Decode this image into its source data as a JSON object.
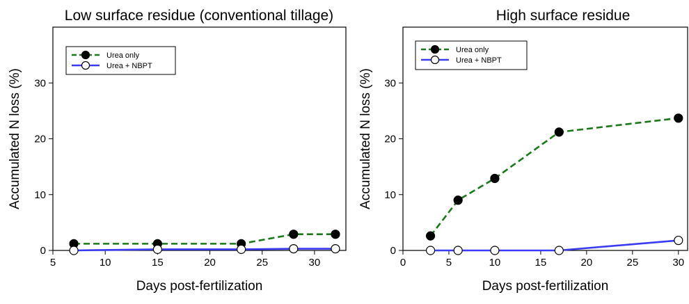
{
  "chart_data": [
    {
      "type": "line",
      "title": "Low surface residue (conventional tillage)",
      "xlabel": "Days post-fertilization",
      "ylabel": "Accumulated N loss (%)",
      "xlim": [
        5,
        33
      ],
      "ylim": [
        0,
        40
      ],
      "xticks": [
        5,
        10,
        15,
        20,
        25,
        30
      ],
      "yticks": [
        0,
        10,
        20,
        30
      ],
      "grid": false,
      "legend_position": "top-left",
      "series": [
        {
          "name": "Urea only",
          "style": "dashed",
          "color": "#1a7a1a",
          "marker": "filled-circle",
          "x": [
            7,
            15,
            23,
            28,
            32
          ],
          "y": [
            1.2,
            1.2,
            1.2,
            2.9,
            2.9
          ]
        },
        {
          "name": "Urea + NBPT",
          "style": "solid",
          "color": "#3b3bf5",
          "marker": "open-circle",
          "x": [
            7,
            15,
            23,
            28,
            32
          ],
          "y": [
            0,
            0.2,
            0.2,
            0.3,
            0.3
          ]
        }
      ]
    },
    {
      "type": "line",
      "title": "High surface residue",
      "xlabel": "Days post-fertilization",
      "ylabel": "Accumulated N loss (%)",
      "xlim": [
        0,
        31
      ],
      "ylim": [
        0,
        40
      ],
      "xticks": [
        0,
        5,
        10,
        15,
        20,
        25,
        30
      ],
      "yticks": [
        0,
        10,
        20,
        30
      ],
      "grid": false,
      "legend_position": "top-left",
      "series": [
        {
          "name": "Urea only",
          "style": "dashed",
          "color": "#1a7a1a",
          "marker": "filled-circle",
          "x": [
            3,
            6,
            10,
            17,
            30
          ],
          "y": [
            2.6,
            9.0,
            12.9,
            21.2,
            23.7
          ]
        },
        {
          "name": "Urea + NBPT",
          "style": "solid",
          "color": "#3b3bf5",
          "marker": "open-circle",
          "x": [
            3,
            6,
            10,
            17,
            30
          ],
          "y": [
            0,
            0,
            0,
            0,
            1.8
          ]
        }
      ]
    }
  ]
}
